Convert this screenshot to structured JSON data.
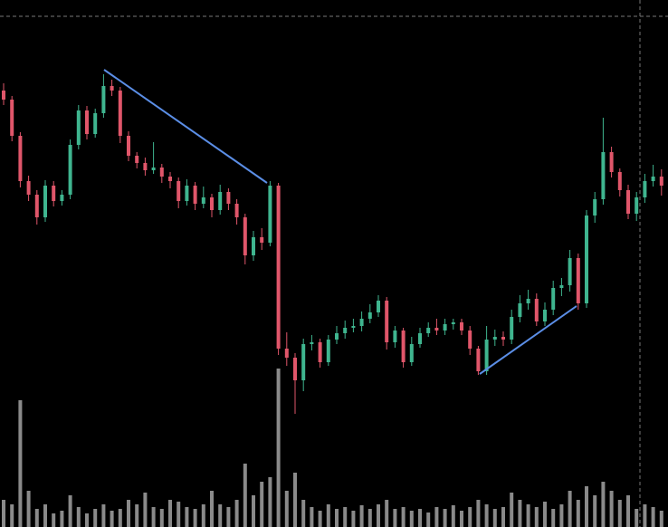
{
  "chart_data": {
    "type": "candlestick",
    "up_color": "#3fb58f",
    "down_color": "#e0566a",
    "volume_color": "#8a8a8a",
    "ylim": [
      0,
      582
    ],
    "y2lim": [
      0,
      582
    ],
    "open": [
      482,
      472,
      432,
      382,
      367,
      342,
      377,
      360,
      367,
      422,
      460,
      434,
      457,
      487,
      482,
      432,
      410,
      402,
      394,
      397,
      387,
      382,
      360,
      377,
      357,
      364,
      350,
      370,
      357,
      342,
      300,
      320,
      314,
      377,
      197,
      187,
      162,
      202,
      204,
      182,
      207,
      214,
      220,
      222,
      230,
      237,
      250,
      204,
      217,
      182,
      202,
      214,
      220,
      217,
      224,
      226,
      217,
      197,
      172,
      207,
      210,
      207,
      232,
      247,
      252,
      227,
      240,
      264,
      267,
      297,
      247,
      344,
      362,
      414,
      392,
      372,
      346,
      364,
      382,
      387
    ],
    "high": [
      490,
      476,
      436,
      388,
      372,
      383,
      382,
      372,
      428,
      466,
      465,
      462,
      500,
      494,
      486,
      437,
      414,
      408,
      425,
      401,
      392,
      386,
      384,
      381,
      376,
      368,
      378,
      374,
      362,
      346,
      327,
      330,
      382,
      380,
      215,
      192,
      208,
      212,
      208,
      212,
      222,
      228,
      230,
      238,
      246,
      256,
      254,
      222,
      220,
      210,
      220,
      226,
      230,
      230,
      230,
      230,
      222,
      200,
      222,
      218,
      216,
      240,
      256,
      262,
      258,
      248,
      272,
      275,
      306,
      302,
      350,
      370,
      452,
      420,
      396,
      378,
      370,
      390,
      400,
      395
    ],
    "low": [
      466,
      426,
      375,
      360,
      334,
      337,
      354,
      355,
      362,
      417,
      428,
      430,
      452,
      476,
      424,
      404,
      396,
      388,
      390,
      380,
      374,
      352,
      355,
      350,
      352,
      342,
      345,
      350,
      334,
      290,
      294,
      306,
      310,
      190,
      178,
      125,
      150,
      195,
      176,
      178,
      202,
      208,
      215,
      216,
      225,
      232,
      196,
      198,
      176,
      178,
      198,
      210,
      212,
      212,
      218,
      212,
      190,
      168,
      168,
      200,
      200,
      202,
      226,
      240,
      222,
      222,
      234,
      255,
      260,
      240,
      242,
      336,
      356,
      386,
      365,
      340,
      338,
      358,
      376,
      366
    ],
    "close": [
      472,
      432,
      382,
      367,
      342,
      377,
      360,
      367,
      422,
      460,
      434,
      457,
      487,
      482,
      432,
      410,
      402,
      394,
      397,
      387,
      382,
      360,
      377,
      357,
      364,
      350,
      370,
      357,
      342,
      300,
      320,
      314,
      377,
      197,
      187,
      162,
      202,
      204,
      182,
      207,
      214,
      220,
      222,
      230,
      237,
      250,
      204,
      217,
      182,
      202,
      214,
      220,
      217,
      224,
      226,
      217,
      197,
      172,
      207,
      210,
      207,
      232,
      247,
      252,
      227,
      240,
      264,
      267,
      297,
      247,
      344,
      362,
      414,
      392,
      372,
      346,
      364,
      382,
      387,
      377
    ],
    "volume": [
      30,
      25,
      140,
      40,
      20,
      25,
      15,
      18,
      35,
      22,
      15,
      20,
      25,
      18,
      20,
      30,
      25,
      38,
      22,
      20,
      30,
      28,
      22,
      20,
      25,
      40,
      25,
      22,
      30,
      70,
      35,
      50,
      55,
      175,
      40,
      60,
      30,
      22,
      18,
      25,
      20,
      22,
      18,
      24,
      20,
      25,
      30,
      20,
      22,
      18,
      20,
      16,
      22,
      20,
      24,
      18,
      22,
      30,
      25,
      20,
      22,
      38,
      30,
      25,
      22,
      28,
      20,
      25,
      40,
      30,
      45,
      35,
      50,
      40,
      30,
      35,
      20,
      25,
      22,
      18
    ]
  }
}
